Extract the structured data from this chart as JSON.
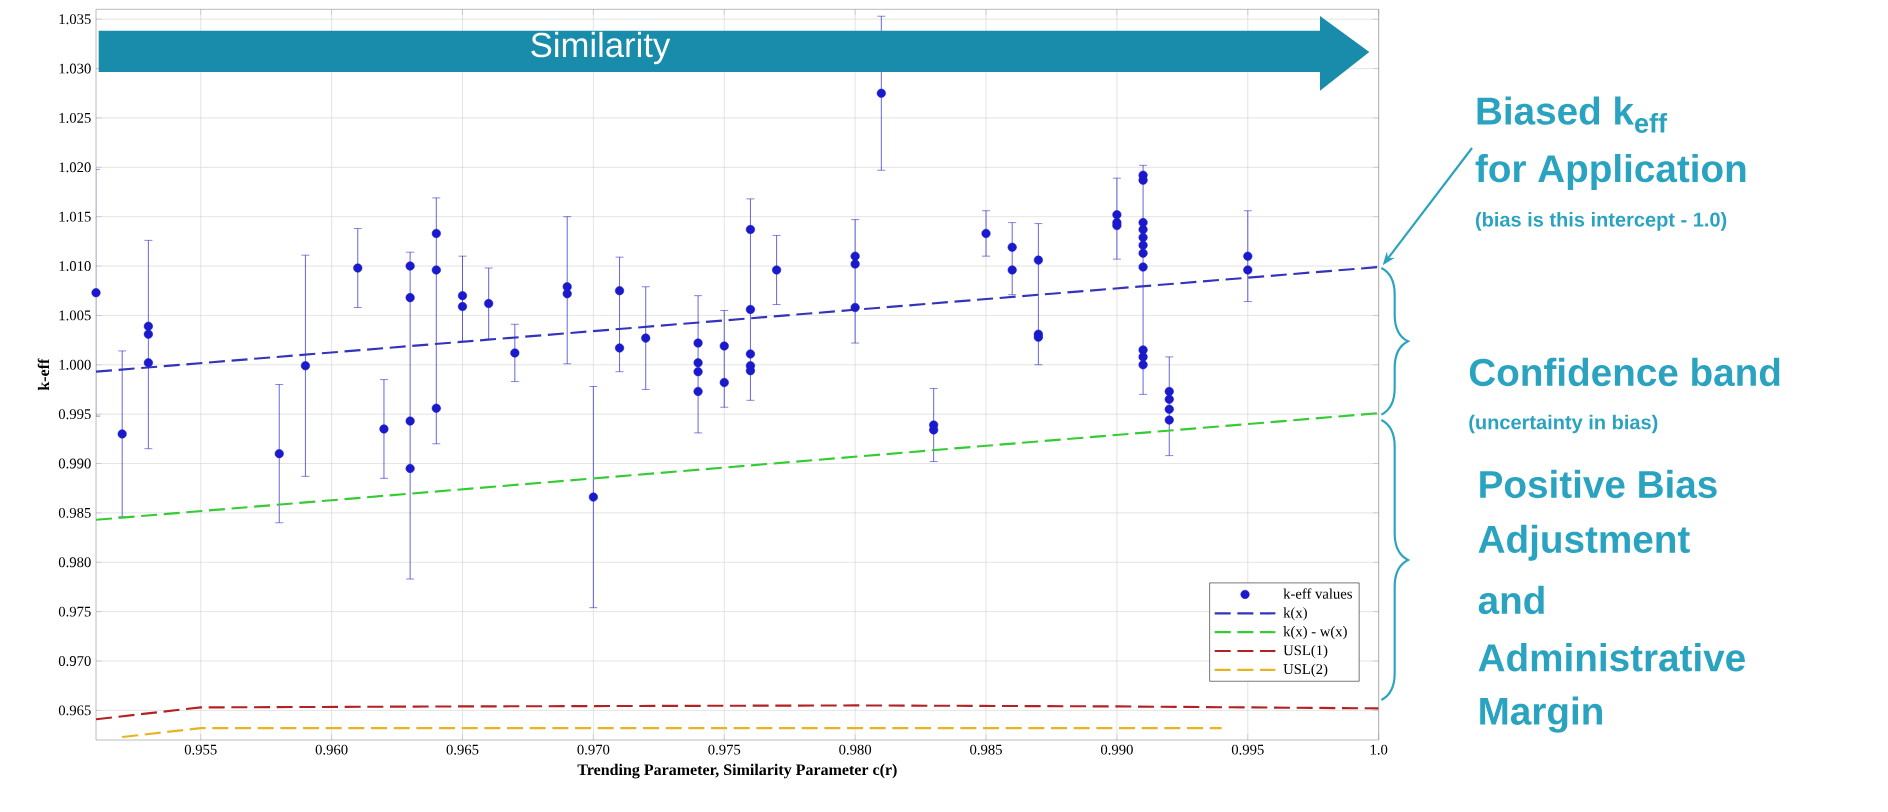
{
  "chart_data": {
    "type": "scatter",
    "xlabel": "Trending Parameter, Similarity Parameter c(r)",
    "ylabel": "k-eff",
    "xlim": [
      0.951,
      1.0
    ],
    "ylim": [
      0.962,
      1.036
    ],
    "xticks": [
      {
        "value": 0.955,
        "label": "0.955"
      },
      {
        "value": 0.96,
        "label": "0.960"
      },
      {
        "value": 0.965,
        "label": "0.965"
      },
      {
        "value": 0.97,
        "label": "0.970"
      },
      {
        "value": 0.975,
        "label": "0.975"
      },
      {
        "value": 0.98,
        "label": "0.980"
      },
      {
        "value": 0.985,
        "label": "0.985"
      },
      {
        "value": 0.99,
        "label": "0.990"
      },
      {
        "value": 0.995,
        "label": "0.995"
      },
      {
        "value": 1.0,
        "label": "1.0"
      }
    ],
    "yticks": [
      {
        "value": 0.965,
        "label": "0.965"
      },
      {
        "value": 0.97,
        "label": "0.970"
      },
      {
        "value": 0.975,
        "label": "0.975"
      },
      {
        "value": 0.98,
        "label": "0.980"
      },
      {
        "value": 0.985,
        "label": "0.985"
      },
      {
        "value": 0.99,
        "label": "0.990"
      },
      {
        "value": 0.995,
        "label": "0.995"
      },
      {
        "value": 1.0,
        "label": "1.000"
      },
      {
        "value": 1.005,
        "label": "1.005"
      },
      {
        "value": 1.01,
        "label": "1.010"
      },
      {
        "value": 1.015,
        "label": "1.015"
      },
      {
        "value": 1.02,
        "label": "1.020"
      },
      {
        "value": 1.025,
        "label": "1.025"
      },
      {
        "value": 1.03,
        "label": "1.030"
      },
      {
        "value": 1.035,
        "label": "1.035"
      }
    ],
    "grid": true,
    "legend": "bottom right",
    "marker": "circle",
    "series": [
      {
        "name": "k-eff values",
        "color": "#1a1acc",
        "x": [
          0.951,
          0.952,
          0.953,
          0.953,
          0.953,
          0.958,
          0.959,
          0.961,
          0.962,
          0.963,
          0.963,
          0.963,
          0.963,
          0.964,
          0.964,
          0.964,
          0.965,
          0.965,
          0.966,
          0.967,
          0.969,
          0.969,
          0.97,
          0.971,
          0.971,
          0.972,
          0.974,
          0.974,
          0.974,
          0.974,
          0.975,
          0.975,
          0.976,
          0.976,
          0.976,
          0.976,
          0.976,
          0.977,
          0.98,
          0.98,
          0.98,
          0.981,
          0.983,
          0.983,
          0.985,
          0.986,
          0.986,
          0.987,
          0.987,
          0.987,
          0.99,
          0.99,
          0.99,
          0.991,
          0.991,
          0.991,
          0.991,
          0.991,
          0.991,
          0.991,
          0.991,
          0.991,
          0.991,
          0.991,
          0.992,
          0.992,
          0.992,
          0.992,
          0.995,
          0.995
        ],
        "values": [
          1.0073,
          0.993,
          1.0039,
          1.0031,
          1.0002,
          0.991,
          0.9999,
          1.0098,
          0.9935,
          1.01,
          1.0068,
          0.9943,
          0.9895,
          1.0133,
          1.0096,
          0.9956,
          1.007,
          1.0059,
          1.0062,
          1.0012,
          1.0079,
          1.0072,
          0.9866,
          1.0075,
          1.0017,
          1.0027,
          1.0022,
          1.0002,
          0.9993,
          0.9973,
          1.0019,
          0.9982,
          1.0137,
          1.0056,
          1.0011,
          0.9999,
          0.9994,
          1.0096,
          1.011,
          1.0102,
          1.0058,
          1.0275,
          0.9939,
          0.9934,
          1.0133,
          1.0119,
          1.0096,
          1.0106,
          1.0031,
          1.0028,
          1.0152,
          1.0144,
          1.0141,
          1.0192,
          1.0187,
          1.0144,
          1.0137,
          1.0129,
          1.0121,
          1.0113,
          1.0099,
          1.0015,
          1.0008,
          1.0,
          0.9973,
          0.9965,
          0.9955,
          0.9944,
          1.011,
          1.0096
        ],
        "errors": [
          0.0125,
          0.0084,
          [
            0.9915,
            1.0126
          ],
          null,
          null,
          0.007,
          0.0112,
          0.004,
          0.005,
          null,
          null,
          null,
          [
            0.9783,
            1.0114
          ],
          [
            0.992,
            1.0169
          ],
          null,
          null,
          [
            1.0024,
            1.011
          ],
          null,
          0.0036,
          0.0029,
          [
            1.0001,
            1.015
          ],
          null,
          0.0112,
          [
            0.9993,
            1.0109
          ],
          null,
          0.0052,
          [
            0.9931,
            1.007
          ],
          null,
          null,
          null,
          [
            0.9957,
            1.0055
          ],
          null,
          [
            0.9964,
            1.0168
          ],
          null,
          null,
          null,
          null,
          0.0035,
          [
            1.0022,
            1.0147
          ],
          null,
          null,
          0.0078,
          [
            0.9902,
            0.9976
          ],
          null,
          0.0023,
          [
            1.0071,
            1.0144
          ],
          null,
          [
            1.0,
            1.0143
          ],
          null,
          null,
          [
            1.0107,
            1.0189
          ],
          null,
          null,
          [
            0.997,
            1.0202
          ],
          null,
          null,
          null,
          null,
          null,
          null,
          null,
          null,
          null,
          null,
          [
            0.9908,
            1.0008
          ],
          null,
          null,
          null,
          [
            1.0064,
            1.0156
          ],
          null
        ]
      },
      {
        "name": "k(x)",
        "type": "line",
        "marker": "none",
        "line_style": "dashed",
        "color": "#3333bb",
        "x": [
          0.951,
          1.0
        ],
        "values": [
          0.9993,
          1.0099
        ]
      },
      {
        "name": "k(x) - w(x)",
        "type": "line",
        "marker": "none",
        "line_style": "dashed",
        "color": "#33cc33",
        "x": [
          0.951,
          1.0
        ],
        "values": [
          0.9843,
          0.9951
        ]
      },
      {
        "name": "USL(1)",
        "type": "line",
        "marker": "none",
        "line_style": "dashed",
        "color": "#b22222",
        "x": [
          0.951,
          0.955,
          0.965,
          0.98,
          0.99,
          1.0
        ],
        "values": [
          0.9641,
          0.9653,
          0.9654,
          0.9655,
          0.9654,
          0.9652
        ]
      },
      {
        "name": "USL(2)",
        "type": "line",
        "marker": "none",
        "line_style": "dashed",
        "color": "#e6b422",
        "x": [
          0.952,
          0.955,
          0.994
        ],
        "values": [
          0.9623,
          0.9632,
          0.9632
        ]
      }
    ],
    "annotations": [
      "Similarity",
      "Biased k$_{eff}$",
      "for Application",
      "(bias is this intercept - 1.0)",
      "Confidence band",
      "(uncertainty in bias)",
      "Positive Bias",
      "Adjustment",
      "and",
      "Administrative",
      "Margin"
    ]
  }
}
